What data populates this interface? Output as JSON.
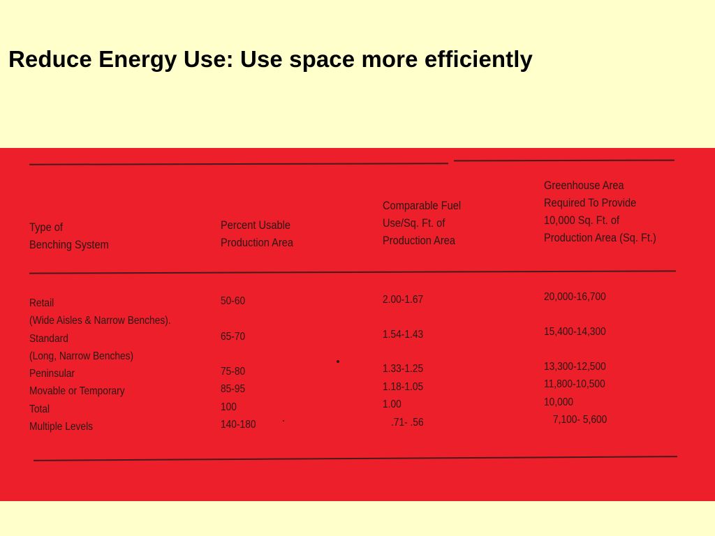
{
  "slide": {
    "title": "Reduce Energy Use:  Use space more efficiently"
  },
  "table": {
    "headers": {
      "type": [
        "Type of",
        "Benching System"
      ],
      "percent": [
        "Percent Usable",
        "Production Area"
      ],
      "fuel": [
        "Comparable Fuel",
        "Use/Sq. Ft. of",
        "Production Area"
      ],
      "area": [
        "Greenhouse Area",
        "Required To Provide",
        "10,000 Sq. Ft. of",
        "Production Area (Sq. Ft.)"
      ]
    },
    "rows": [
      {
        "type": "Retail",
        "percent": "50-60",
        "fuel": "2.00-1.67",
        "area": "20,000-16,700"
      },
      {
        "type": "(Wide Aisles & Narrow Benches).",
        "percent": "",
        "fuel": "",
        "area": ""
      },
      {
        "type": "Standard",
        "percent": "65-70",
        "fuel": "1.54-1.43",
        "area": "15,400-14,300"
      },
      {
        "type": "(Long, Narrow Benches)",
        "percent": "",
        "fuel": "",
        "area": ""
      },
      {
        "type": "Peninsular",
        "percent": "75-80",
        "fuel": "1.33-1.25",
        "area": "13,300-12,500"
      },
      {
        "type": "Movable or Temporary",
        "percent": "85-95",
        "fuel": "1.18-1.05",
        "area": "11,800-10,500"
      },
      {
        "type": "Total",
        "percent": "100",
        "fuel": "1.00",
        "area": "10,000"
      },
      {
        "type": "Multiple Levels",
        "percent": "140-180",
        "fuel": ".71-  .56",
        "area": "7,100-  5,600"
      }
    ]
  }
}
